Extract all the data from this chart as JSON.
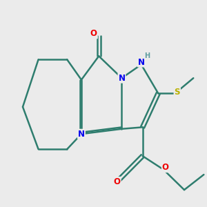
{
  "background_color": "#ebebeb",
  "bond_color": "#2e7d6e",
  "N_color": "#0000ee",
  "O_color": "#ee0000",
  "S_color": "#b8b000",
  "H_color": "#5f9ea0",
  "line_width": 1.8,
  "figsize": [
    3.0,
    3.0
  ],
  "dpi": 100,
  "xlim": [
    0,
    10
  ],
  "ylim": [
    0,
    10
  ]
}
